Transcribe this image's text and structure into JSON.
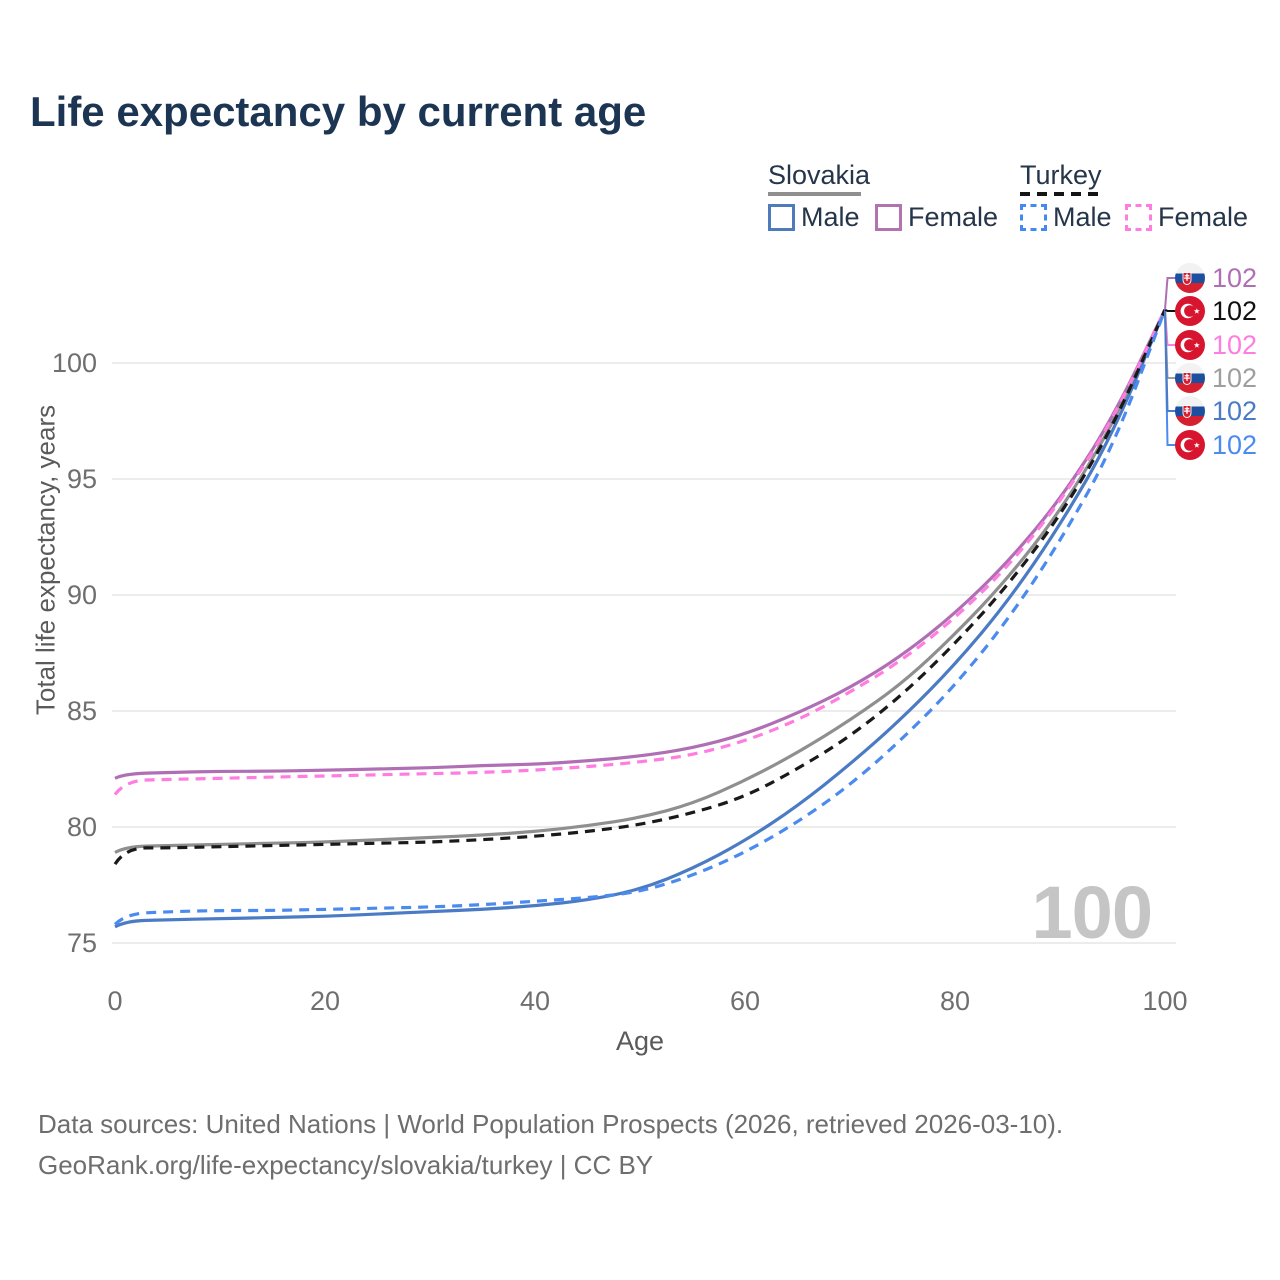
{
  "header": {
    "title": "Life expectancy by current age"
  },
  "legend": {
    "position": "top-right",
    "groups": [
      {
        "label": "Slovakia",
        "line_style": "solid",
        "line_color": "#8f8f8f"
      },
      {
        "label": "Turkey",
        "line_style": "dashed",
        "line_color": "#141414"
      }
    ],
    "items": [
      {
        "label": "Male",
        "country": "Slovakia",
        "color": "#4e7cba",
        "style": "solid"
      },
      {
        "label": "Female",
        "country": "Slovakia",
        "color": "#b273af",
        "style": "solid"
      },
      {
        "label": "Male",
        "country": "Turkey",
        "color": "#4488f2",
        "style": "dashed"
      },
      {
        "label": "Female",
        "country": "Turkey",
        "color": "#ff7ce0",
        "style": "dashed"
      }
    ]
  },
  "chart_data": {
    "type": "line",
    "title": "Life expectancy by current age",
    "xlabel": "Age",
    "ylabel": "Total life expectancy, years",
    "x_ticks": [
      0,
      20,
      40,
      60,
      80,
      100
    ],
    "y_ticks": [
      75,
      80,
      85,
      90,
      95,
      100
    ],
    "xlim": [
      0,
      101
    ],
    "ylim": [
      74,
      103.5
    ],
    "grid": "horizontal",
    "watermark": "100",
    "ages": [
      0,
      1,
      5,
      10,
      15,
      20,
      25,
      30,
      35,
      40,
      45,
      50,
      55,
      60,
      65,
      70,
      75,
      80,
      85,
      90,
      95,
      100
    ],
    "series": [
      {
        "id": "slovakia-female",
        "country": "Slovakia",
        "sex": "Female",
        "color": "#b06fb4",
        "style": "solid",
        "values": [
          82.1,
          82.3,
          82.35,
          82.4,
          82.4,
          82.45,
          82.5,
          82.55,
          82.65,
          82.7,
          82.85,
          83.05,
          83.4,
          84.0,
          84.9,
          86.0,
          87.4,
          89.2,
          91.4,
          94.1,
          97.6,
          102.3
        ]
      },
      {
        "id": "slovakia-total",
        "country": "Slovakia",
        "sex": "Both",
        "color": "#8f8f8f",
        "style": "solid",
        "values": [
          78.9,
          79.15,
          79.2,
          79.25,
          79.3,
          79.35,
          79.45,
          79.55,
          79.65,
          79.8,
          80.05,
          80.4,
          81.0,
          82.0,
          83.2,
          84.6,
          86.2,
          88.3,
          90.7,
          93.6,
          97.3,
          102.3
        ]
      },
      {
        "id": "slovakia-male",
        "country": "Slovakia",
        "sex": "Male",
        "color": "#4a7bc4",
        "style": "solid",
        "values": [
          75.7,
          75.95,
          76.0,
          76.05,
          76.1,
          76.15,
          76.25,
          76.35,
          76.45,
          76.6,
          76.85,
          77.3,
          78.2,
          79.4,
          80.9,
          82.7,
          84.7,
          87.0,
          89.7,
          93.0,
          96.9,
          102.3
        ]
      },
      {
        "id": "turkey-female",
        "country": "Turkey",
        "sex": "Female",
        "color": "#ff7ce0",
        "style": "dashed",
        "values": [
          81.4,
          82.0,
          82.05,
          82.1,
          82.15,
          82.2,
          82.25,
          82.3,
          82.35,
          82.45,
          82.6,
          82.8,
          83.1,
          83.7,
          84.6,
          85.8,
          87.2,
          89.0,
          91.2,
          94.0,
          97.5,
          102.3
        ]
      },
      {
        "id": "turkey-total",
        "country": "Turkey",
        "sex": "Both",
        "color": "#1a1a1a",
        "style": "dashed",
        "values": [
          78.4,
          79.1,
          79.1,
          79.15,
          79.2,
          79.25,
          79.3,
          79.35,
          79.45,
          79.6,
          79.8,
          80.1,
          80.6,
          81.3,
          82.5,
          83.9,
          85.7,
          87.9,
          90.4,
          93.4,
          97.2,
          102.3
        ]
      },
      {
        "id": "turkey-male",
        "country": "Turkey",
        "sex": "Male",
        "color": "#4b8bf0",
        "style": "dashed",
        "values": [
          75.8,
          76.25,
          76.35,
          76.4,
          76.4,
          76.45,
          76.5,
          76.55,
          76.65,
          76.8,
          76.95,
          77.2,
          77.9,
          78.9,
          80.2,
          81.8,
          83.8,
          86.1,
          88.9,
          92.3,
          96.3,
          102.3
        ]
      }
    ],
    "end_labels": [
      {
        "series": "slovakia-female",
        "flag": "slovakia",
        "value": "102",
        "color": "#b06fb4",
        "y": 278
      },
      {
        "series": "turkey-total",
        "flag": "turkey",
        "value": "102",
        "color": "#111111",
        "y": 311
      },
      {
        "series": "turkey-female",
        "flag": "turkey",
        "value": "102",
        "color": "#ff7ce0",
        "y": 345
      },
      {
        "series": "slovakia-total",
        "flag": "slovakia",
        "value": "102",
        "color": "#9e9e9e",
        "y": 378
      },
      {
        "series": "slovakia-male",
        "flag": "slovakia",
        "value": "102",
        "color": "#4a7bc4",
        "y": 411
      },
      {
        "series": "turkey-male",
        "flag": "turkey",
        "value": "102",
        "color": "#4b8bf0",
        "y": 445
      }
    ]
  },
  "footer": {
    "line1": "Data sources: United Nations | World Population Prospects (2026, retrieved 2026-03-10).",
    "line2": "GeoRank.org/life-expectancy/slovakia/turkey | CC BY"
  }
}
